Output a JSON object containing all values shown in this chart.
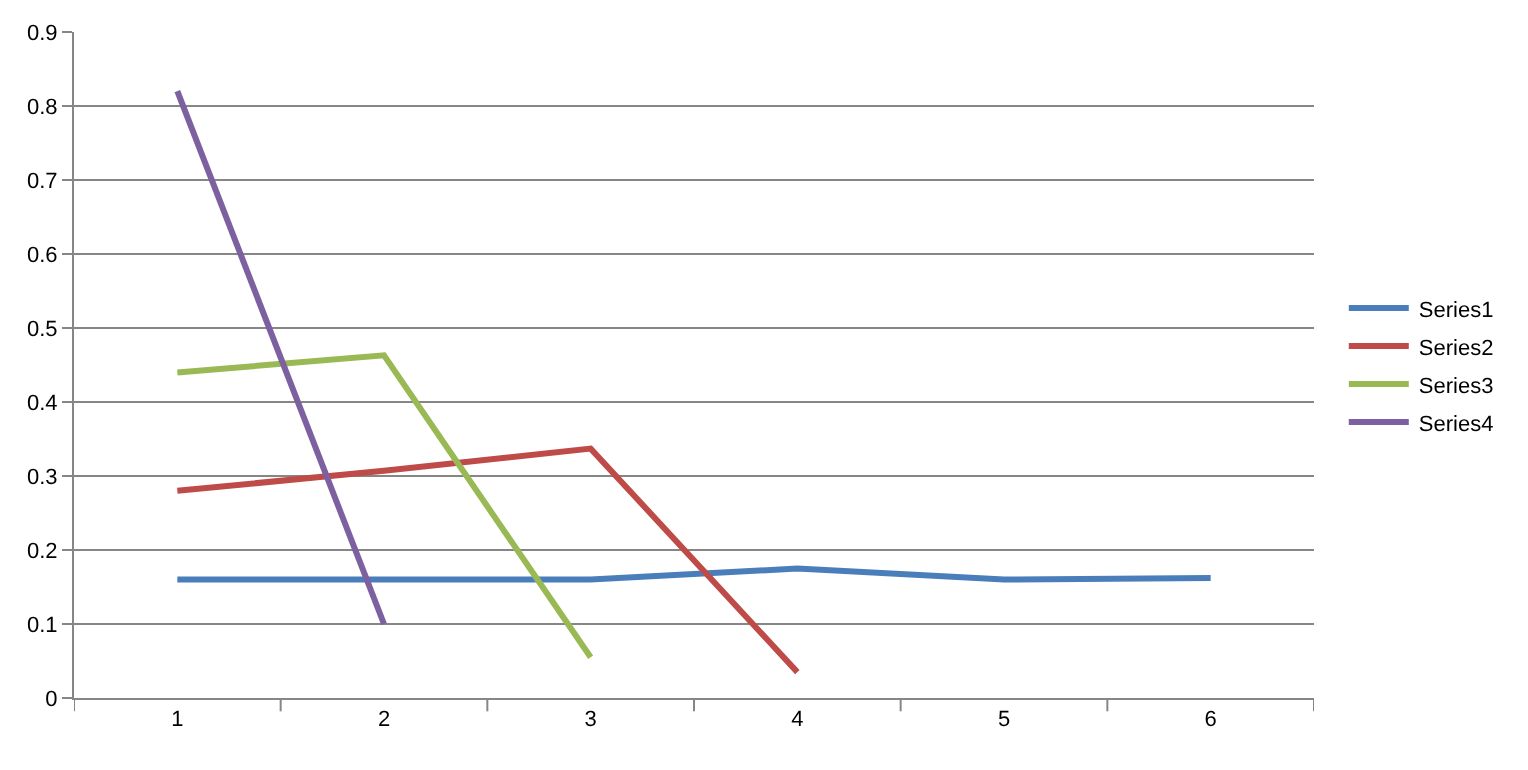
{
  "chart_data": {
    "type": "line",
    "categories": [
      "1",
      "2",
      "3",
      "4",
      "5",
      "6"
    ],
    "series": [
      {
        "name": "Series1",
        "color": "#4a7ebb",
        "values": [
          0.16,
          0.16,
          0.16,
          0.175,
          0.16,
          0.162
        ]
      },
      {
        "name": "Series2",
        "color": "#be4b48",
        "values": [
          0.28,
          0.307,
          0.337,
          0.035,
          null,
          null
        ]
      },
      {
        "name": "Series3",
        "color": "#98b954",
        "values": [
          0.44,
          0.463,
          0.055,
          null,
          null,
          null
        ]
      },
      {
        "name": "Series4",
        "color": "#7d60a0",
        "values": [
          0.82,
          0.1,
          null,
          null,
          null,
          null
        ]
      }
    ],
    "ylim": [
      0,
      0.9
    ],
    "yticks": [
      0,
      0.1,
      0.2,
      0.3,
      0.4,
      0.5,
      0.6,
      0.7,
      0.8,
      0.9
    ],
    "grid": "y",
    "legend": "right",
    "marker": "none",
    "line_style": "solid"
  }
}
